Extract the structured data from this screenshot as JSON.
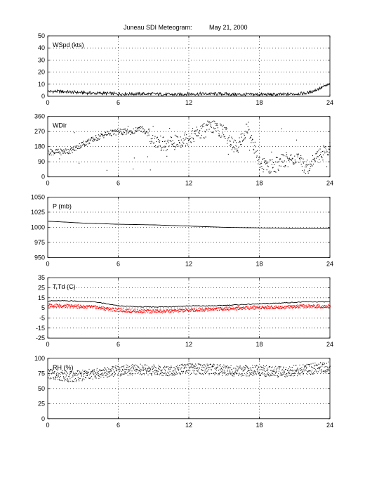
{
  "header": {
    "title": "Juneau SDI Meteogram:",
    "date": "May 21, 2000"
  },
  "colors": {
    "temperature": "#000000",
    "dewpoint": "#ff0000",
    "points": "#000000"
  },
  "chart_data": [
    {
      "id": "wspd",
      "type": "line",
      "label": "WSpd (kts)",
      "xlim": [
        0,
        24
      ],
      "ylim": [
        0,
        50
      ],
      "xticks": [
        0,
        6,
        12,
        18,
        24
      ],
      "yticks": [
        0,
        10,
        20,
        30,
        40,
        50
      ],
      "grid": true,
      "series": [
        {
          "x": [
            0,
            1,
            2,
            3,
            4,
            5,
            6,
            7,
            8,
            9,
            10,
            11,
            12,
            13,
            14,
            15,
            16,
            17,
            18,
            19,
            20,
            21,
            22,
            22.5,
            23,
            23.5,
            24
          ],
          "values": [
            4,
            4,
            3.5,
            3,
            2.5,
            2.5,
            2,
            2,
            2,
            2,
            1.5,
            1.5,
            2,
            2,
            2,
            2,
            1.5,
            1.5,
            1.5,
            1.5,
            1.5,
            2,
            2.5,
            4,
            6,
            8,
            10
          ]
        }
      ]
    },
    {
      "id": "wdir",
      "type": "scatter",
      "label": "WDir",
      "xlim": [
        0,
        24
      ],
      "ylim": [
        0,
        360
      ],
      "xticks": [
        0,
        6,
        12,
        18,
        24
      ],
      "yticks": [
        0,
        90,
        180,
        270,
        360
      ],
      "grid": true,
      "series": [
        {
          "x": [
            0,
            1,
            2,
            3,
            4,
            5,
            6,
            7,
            8,
            9,
            10,
            11,
            12,
            13,
            14,
            15,
            16,
            17,
            18,
            19,
            20,
            21,
            22,
            23,
            24
          ],
          "values": [
            150,
            150,
            160,
            200,
            230,
            260,
            270,
            270,
            290,
            220,
            190,
            210,
            240,
            270,
            300,
            270,
            170,
            300,
            80,
            60,
            100,
            110,
            60,
            130,
            170
          ]
        }
      ]
    },
    {
      "id": "pressure",
      "type": "line",
      "label": "P (mb)",
      "xlim": [
        0,
        24
      ],
      "ylim": [
        950,
        1050
      ],
      "xticks": [
        0,
        6,
        12,
        18,
        24
      ],
      "yticks": [
        950,
        975,
        1000,
        1025,
        1050
      ],
      "grid": true,
      "series": [
        {
          "x": [
            0,
            3,
            6,
            9,
            12,
            15,
            18,
            21,
            24
          ],
          "values": [
            1010,
            1007,
            1005,
            1004,
            1002,
            1000,
            999,
            998,
            998
          ]
        }
      ]
    },
    {
      "id": "temp",
      "type": "line",
      "label": "T,Td (C)",
      "xlim": [
        0,
        24
      ],
      "ylim": [
        -25,
        35
      ],
      "xticks": [
        0,
        6,
        12,
        18,
        24
      ],
      "yticks": [
        -25,
        -15,
        -5,
        5,
        15,
        25,
        35
      ],
      "grid": true,
      "series": [
        {
          "x": [
            0,
            2,
            4,
            6,
            8,
            10,
            12,
            14,
            16,
            18,
            20,
            22,
            24
          ],
          "values": [
            12,
            12,
            11,
            7,
            6,
            6,
            7,
            7,
            8,
            9,
            10,
            11,
            11
          ]
        },
        {
          "x": [
            0,
            2,
            4,
            6,
            8,
            10,
            12,
            14,
            16,
            18,
            20,
            22,
            24
          ],
          "values": [
            8,
            7,
            6,
            3,
            2,
            2,
            3,
            4,
            5,
            6,
            6,
            7,
            7
          ]
        }
      ]
    },
    {
      "id": "rh",
      "type": "scatter",
      "label": "RH (%)",
      "xlim": [
        0,
        24
      ],
      "ylim": [
        0,
        100
      ],
      "xticks": [
        0,
        6,
        12,
        18,
        24
      ],
      "yticks": [
        0,
        25,
        50,
        75,
        100
      ],
      "grid": true,
      "series": [
        {
          "x": [
            0,
            2,
            4,
            6,
            8,
            10,
            12,
            14,
            16,
            18,
            20,
            22,
            24
          ],
          "values": [
            75,
            70,
            75,
            80,
            82,
            80,
            83,
            82,
            80,
            80,
            78,
            82,
            87
          ]
        }
      ]
    }
  ]
}
